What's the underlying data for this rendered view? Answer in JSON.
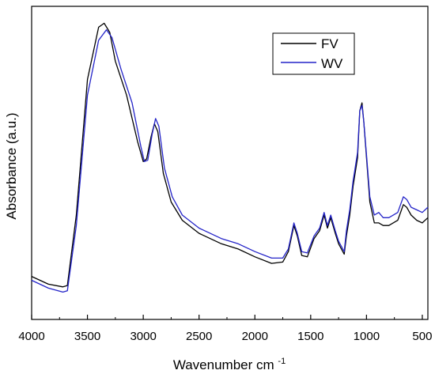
{
  "chart_data": {
    "type": "line",
    "title": "",
    "xlabel": "Wavenumber cm",
    "xlabel_superscript": "-1",
    "ylabel": "Absorbance (a.u.)",
    "xlim": [
      4000,
      450
    ],
    "x_reversed": true,
    "y_ticks_shown": false,
    "ylim": [
      0,
      1.2
    ],
    "grid": false,
    "legend": {
      "placement": "top-right",
      "entries": [
        "FV",
        "WV"
      ]
    },
    "x_ticks": [
      4000,
      3500,
      3000,
      2500,
      2000,
      1500,
      1000,
      500
    ],
    "series": [
      {
        "name": "FV",
        "color": "#000000",
        "points": [
          [
            4000,
            0.165
          ],
          [
            3850,
            0.135
          ],
          [
            3720,
            0.125
          ],
          [
            3680,
            0.13
          ],
          [
            3600,
            0.4
          ],
          [
            3500,
            0.92
          ],
          [
            3400,
            1.12
          ],
          [
            3350,
            1.135
          ],
          [
            3300,
            1.1
          ],
          [
            3250,
            0.99
          ],
          [
            3150,
            0.86
          ],
          [
            3050,
            0.68
          ],
          [
            3000,
            0.605
          ],
          [
            2970,
            0.615
          ],
          [
            2930,
            0.7
          ],
          [
            2900,
            0.75
          ],
          [
            2870,
            0.72
          ],
          [
            2820,
            0.56
          ],
          [
            2750,
            0.45
          ],
          [
            2650,
            0.38
          ],
          [
            2500,
            0.33
          ],
          [
            2300,
            0.29
          ],
          [
            2150,
            0.27
          ],
          [
            2000,
            0.24
          ],
          [
            1850,
            0.215
          ],
          [
            1750,
            0.22
          ],
          [
            1700,
            0.26
          ],
          [
            1650,
            0.36
          ],
          [
            1620,
            0.32
          ],
          [
            1580,
            0.245
          ],
          [
            1530,
            0.24
          ],
          [
            1470,
            0.31
          ],
          [
            1420,
            0.34
          ],
          [
            1380,
            0.4
          ],
          [
            1350,
            0.35
          ],
          [
            1320,
            0.39
          ],
          [
            1280,
            0.33
          ],
          [
            1250,
            0.29
          ],
          [
            1200,
            0.25
          ],
          [
            1180,
            0.32
          ],
          [
            1150,
            0.4
          ],
          [
            1120,
            0.51
          ],
          [
            1080,
            0.62
          ],
          [
            1060,
            0.8
          ],
          [
            1040,
            0.83
          ],
          [
            1025,
            0.76
          ],
          [
            1000,
            0.62
          ],
          [
            970,
            0.45
          ],
          [
            930,
            0.37
          ],
          [
            890,
            0.37
          ],
          [
            850,
            0.36
          ],
          [
            800,
            0.36
          ],
          [
            720,
            0.38
          ],
          [
            670,
            0.44
          ],
          [
            640,
            0.43
          ],
          [
            600,
            0.4
          ],
          [
            550,
            0.38
          ],
          [
            500,
            0.37
          ],
          [
            450,
            0.39
          ]
        ]
      },
      {
        "name": "WV",
        "color": "#2323c8",
        "points": [
          [
            4000,
            0.15
          ],
          [
            3850,
            0.12
          ],
          [
            3720,
            0.105
          ],
          [
            3680,
            0.11
          ],
          [
            3600,
            0.36
          ],
          [
            3500,
            0.86
          ],
          [
            3400,
            1.07
          ],
          [
            3330,
            1.11
          ],
          [
            3280,
            1.08
          ],
          [
            3200,
            0.96
          ],
          [
            3100,
            0.83
          ],
          [
            3020,
            0.66
          ],
          [
            2990,
            0.605
          ],
          [
            2960,
            0.61
          ],
          [
            2920,
            0.71
          ],
          [
            2890,
            0.77
          ],
          [
            2860,
            0.74
          ],
          [
            2810,
            0.58
          ],
          [
            2740,
            0.47
          ],
          [
            2650,
            0.4
          ],
          [
            2500,
            0.35
          ],
          [
            2300,
            0.31
          ],
          [
            2150,
            0.29
          ],
          [
            2000,
            0.26
          ],
          [
            1850,
            0.235
          ],
          [
            1750,
            0.235
          ],
          [
            1700,
            0.27
          ],
          [
            1650,
            0.37
          ],
          [
            1620,
            0.33
          ],
          [
            1580,
            0.26
          ],
          [
            1530,
            0.255
          ],
          [
            1470,
            0.32
          ],
          [
            1420,
            0.35
          ],
          [
            1380,
            0.41
          ],
          [
            1350,
            0.36
          ],
          [
            1320,
            0.4
          ],
          [
            1280,
            0.34
          ],
          [
            1250,
            0.3
          ],
          [
            1200,
            0.26
          ],
          [
            1180,
            0.34
          ],
          [
            1150,
            0.42
          ],
          [
            1120,
            0.53
          ],
          [
            1080,
            0.64
          ],
          [
            1060,
            0.8
          ],
          [
            1040,
            0.82
          ],
          [
            1025,
            0.76
          ],
          [
            1000,
            0.63
          ],
          [
            970,
            0.47
          ],
          [
            930,
            0.4
          ],
          [
            890,
            0.41
          ],
          [
            850,
            0.39
          ],
          [
            800,
            0.39
          ],
          [
            720,
            0.41
          ],
          [
            670,
            0.47
          ],
          [
            640,
            0.46
          ],
          [
            600,
            0.43
          ],
          [
            550,
            0.42
          ],
          [
            500,
            0.41
          ],
          [
            450,
            0.43
          ]
        ]
      }
    ]
  }
}
